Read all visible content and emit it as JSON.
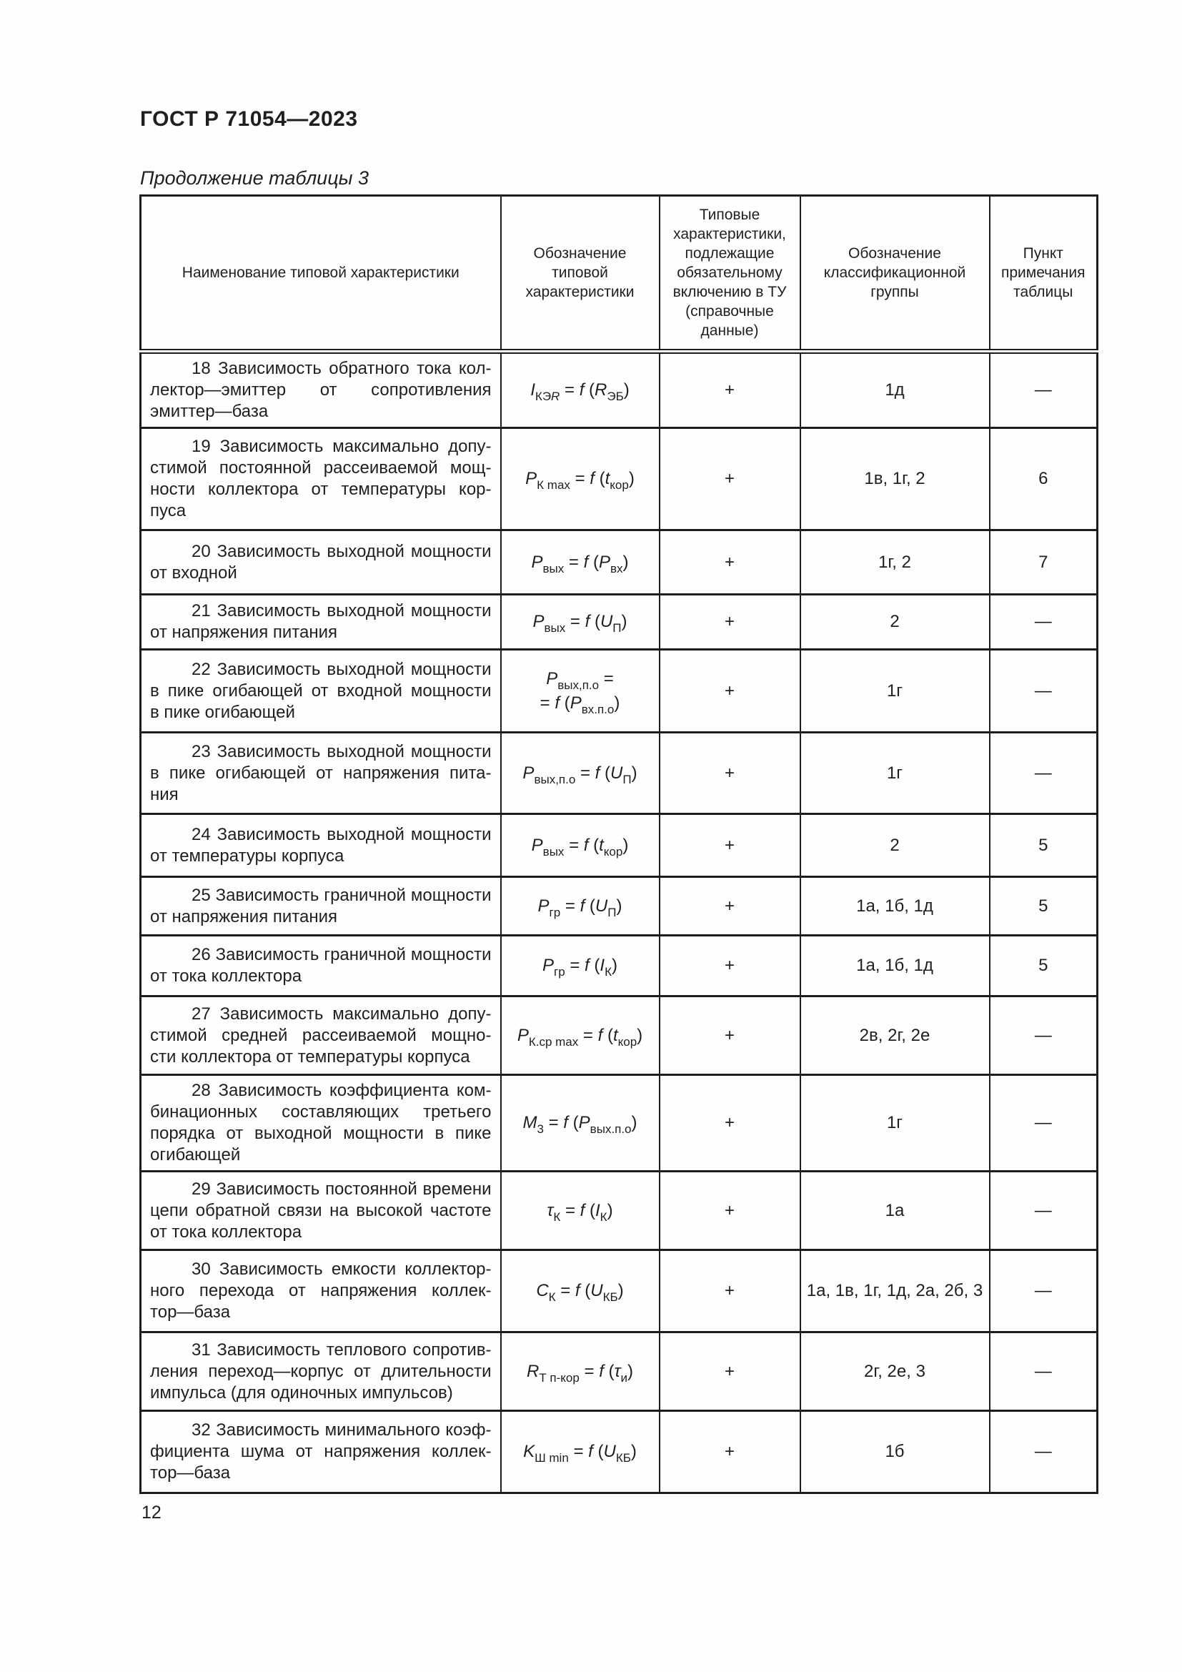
{
  "page": {
    "doc_title": "ГОСТ Р 71054—2023",
    "table_caption": "Продолжение таблицы 3",
    "page_number": "12"
  },
  "table": {
    "headers": [
      "Наименование типовой характеристики",
      "Обозначение типовой характеристики",
      "Типовые характеристики, подлежащие обязательному включению в ТУ (справочные данные)",
      "Обозначение классификационной группы",
      "Пункт примечания таблицы"
    ],
    "rows": [
      {
        "name_lines": [
          "18 Зависимость обратного тока кол-",
          "лектор—эмиттер от сопротивления",
          "эмиттер—база"
        ],
        "formula_lines": [
          [
            {
              "t": "I",
              "i": 1
            },
            {
              "t": "КЭ",
              "s": 1
            },
            {
              "t": "R",
              "s": 1,
              "i": 1
            },
            {
              "t": " = "
            },
            {
              "t": "f",
              "i": 1
            },
            {
              "t": " ("
            },
            {
              "t": "R",
              "i": 1
            },
            {
              "t": "ЭБ",
              "s": 1
            },
            {
              "t": ")"
            }
          ]
        ],
        "typical": "+",
        "group": "1д",
        "note": "—"
      },
      {
        "name_lines": [
          "19 Зависимость максимально допу-",
          "стимой постоянной рассеиваемой мощ-",
          "ности коллектора от температуры кор-",
          "пуса"
        ],
        "formula_lines": [
          [
            {
              "t": "P",
              "i": 1
            },
            {
              "t": "К max",
              "s": 1
            },
            {
              "t": " = "
            },
            {
              "t": "f",
              "i": 1
            },
            {
              "t": " ("
            },
            {
              "t": "t",
              "i": 1
            },
            {
              "t": "кор",
              "s": 1
            },
            {
              "t": ")"
            }
          ]
        ],
        "typical": "+",
        "group": "1в, 1г, 2",
        "note": "6"
      },
      {
        "name_lines": [
          "20 Зависимость выходной мощности",
          "от входной"
        ],
        "formula_lines": [
          [
            {
              "t": "P",
              "i": 1
            },
            {
              "t": "вых",
              "s": 1
            },
            {
              "t": " = "
            },
            {
              "t": "f",
              "i": 1
            },
            {
              "t": " ("
            },
            {
              "t": "P",
              "i": 1
            },
            {
              "t": "вх",
              "s": 1
            },
            {
              "t": ")"
            }
          ]
        ],
        "typical": "+",
        "group": "1г, 2",
        "note": "7"
      },
      {
        "name_lines": [
          "21 Зависимость выходной мощности",
          "от напряжения питания"
        ],
        "formula_lines": [
          [
            {
              "t": "P",
              "i": 1
            },
            {
              "t": "вых",
              "s": 1
            },
            {
              "t": " = "
            },
            {
              "t": "f",
              "i": 1
            },
            {
              "t": " ("
            },
            {
              "t": "U",
              "i": 1
            },
            {
              "t": "П",
              "s": 1
            },
            {
              "t": ")"
            }
          ]
        ],
        "typical": "+",
        "group": "2",
        "note": "—"
      },
      {
        "name_lines": [
          "22 Зависимость выходной мощности",
          "в пике огибающей от входной мощности",
          "в пике огибающей"
        ],
        "formula_lines": [
          [
            {
              "t": "P",
              "i": 1
            },
            {
              "t": "вых,п.о",
              "s": 1
            },
            {
              "t": " ="
            }
          ],
          [
            {
              "t": "= "
            },
            {
              "t": "f",
              "i": 1
            },
            {
              "t": " ("
            },
            {
              "t": "P",
              "i": 1
            },
            {
              "t": "вх.п.о",
              "s": 1
            },
            {
              "t": ")"
            }
          ]
        ],
        "typical": "+",
        "group": "1г",
        "note": "—"
      },
      {
        "name_lines": [
          "23 Зависимость выходной мощности",
          "в пике огибающей от напряжения пита-",
          "ния"
        ],
        "formula_lines": [
          [
            {
              "t": "P",
              "i": 1
            },
            {
              "t": "вых,п.о",
              "s": 1
            },
            {
              "t": " = "
            },
            {
              "t": "f",
              "i": 1
            },
            {
              "t": " ("
            },
            {
              "t": "U",
              "i": 1
            },
            {
              "t": "П",
              "s": 1
            },
            {
              "t": ")"
            }
          ]
        ],
        "typical": "+",
        "group": "1г",
        "note": "—"
      },
      {
        "name_lines": [
          "24 Зависимость выходной мощности",
          "от температуры корпуса"
        ],
        "formula_lines": [
          [
            {
              "t": "P",
              "i": 1
            },
            {
              "t": "вых",
              "s": 1
            },
            {
              "t": " = "
            },
            {
              "t": "f",
              "i": 1
            },
            {
              "t": " ("
            },
            {
              "t": "t",
              "i": 1
            },
            {
              "t": "кор",
              "s": 1
            },
            {
              "t": ")"
            }
          ]
        ],
        "typical": "+",
        "group": "2",
        "note": "5"
      },
      {
        "name_lines": [
          "25 Зависимость граничной мощности",
          "от напряжения питания"
        ],
        "formula_lines": [
          [
            {
              "t": "P",
              "i": 1
            },
            {
              "t": "гр",
              "s": 1
            },
            {
              "t": " = "
            },
            {
              "t": "f",
              "i": 1
            },
            {
              "t": " ("
            },
            {
              "t": "U",
              "i": 1
            },
            {
              "t": "П",
              "s": 1
            },
            {
              "t": ")"
            }
          ]
        ],
        "typical": "+",
        "group": "1а, 1б, 1д",
        "note": "5"
      },
      {
        "name_lines": [
          "26 Зависимость граничной мощности",
          "от тока коллектора"
        ],
        "formula_lines": [
          [
            {
              "t": "P",
              "i": 1
            },
            {
              "t": "гр",
              "s": 1
            },
            {
              "t": " = "
            },
            {
              "t": "f",
              "i": 1
            },
            {
              "t": " ("
            },
            {
              "t": "I",
              "i": 1
            },
            {
              "t": "К",
              "s": 1
            },
            {
              "t": ")"
            }
          ]
        ],
        "typical": "+",
        "group": "1а, 1б, 1д",
        "note": "5"
      },
      {
        "name_lines": [
          "27 Зависимость максимально допу-",
          "стимой средней рассеиваемой мощно-",
          "сти коллектора от температуры корпуса"
        ],
        "formula_lines": [
          [
            {
              "t": "P",
              "i": 1
            },
            {
              "t": "К.ср max",
              "s": 1
            },
            {
              "t": " = "
            },
            {
              "t": "f",
              "i": 1
            },
            {
              "t": " ("
            },
            {
              "t": "t",
              "i": 1
            },
            {
              "t": "кор",
              "s": 1
            },
            {
              "t": ")"
            }
          ]
        ],
        "typical": "+",
        "group": "2в, 2г, 2е",
        "note": "—"
      },
      {
        "name_lines": [
          "28 Зависимость коэффициента ком-",
          "бинационных составляющих третьего",
          "порядка от выходной мощности в пике",
          "огибающей"
        ],
        "formula_lines": [
          [
            {
              "t": "M",
              "i": 1
            },
            {
              "t": "3",
              "s": 1
            },
            {
              "t": " = "
            },
            {
              "t": "f",
              "i": 1
            },
            {
              "t": " ("
            },
            {
              "t": "P",
              "i": 1
            },
            {
              "t": "вых.п.о",
              "s": 1
            },
            {
              "t": ")"
            }
          ]
        ],
        "typical": "+",
        "group": "1г",
        "note": "—"
      },
      {
        "name_lines": [
          "29 Зависимость постоянной времени",
          "цепи обратной связи на высокой частоте",
          "от тока коллектора"
        ],
        "formula_lines": [
          [
            {
              "t": "τ",
              "i": 1
            },
            {
              "t": "К",
              "s": 1
            },
            {
              "t": " = "
            },
            {
              "t": "f",
              "i": 1
            },
            {
              "t": " ("
            },
            {
              "t": "I",
              "i": 1
            },
            {
              "t": "К",
              "s": 1
            },
            {
              "t": ")"
            }
          ]
        ],
        "typical": "+",
        "group": "1а",
        "note": "—"
      },
      {
        "name_lines": [
          "30 Зависимость емкости коллектор-",
          "ного перехода от напряжения коллек-",
          "тор—база"
        ],
        "formula_lines": [
          [
            {
              "t": "C",
              "i": 1
            },
            {
              "t": "К",
              "s": 1
            },
            {
              "t": " = "
            },
            {
              "t": "f",
              "i": 1
            },
            {
              "t": " ("
            },
            {
              "t": "U",
              "i": 1
            },
            {
              "t": "КБ",
              "s": 1
            },
            {
              "t": ")"
            }
          ]
        ],
        "typical": "+",
        "group": "1а, 1в, 1г, 1д, 2а, 2б, 3",
        "note": "—"
      },
      {
        "name_lines": [
          "31 Зависимость теплового сопротив-",
          "ления переход—корпус от длительности",
          "импульса (для одиночных импульсов)"
        ],
        "formula_lines": [
          [
            {
              "t": "R",
              "i": 1
            },
            {
              "t": "Т п-кор",
              "s": 1
            },
            {
              "t": " = "
            },
            {
              "t": "f",
              "i": 1
            },
            {
              "t": " ("
            },
            {
              "t": "τ",
              "i": 1
            },
            {
              "t": "и",
              "s": 1
            },
            {
              "t": ")"
            }
          ]
        ],
        "typical": "+",
        "group": "2г, 2е, 3",
        "note": "—"
      },
      {
        "name_lines": [
          "32 Зависимость минимального коэф-",
          "фициента шума от напряжения коллек-",
          "тор—база"
        ],
        "formula_lines": [
          [
            {
              "t": "K",
              "i": 1
            },
            {
              "t": "Ш min",
              "s": 1
            },
            {
              "t": " = "
            },
            {
              "t": "f",
              "i": 1
            },
            {
              "t": " ("
            },
            {
              "t": "U",
              "i": 1
            },
            {
              "t": "КБ",
              "s": 1
            },
            {
              "t": ")"
            }
          ]
        ],
        "typical": "+",
        "group": "1б",
        "note": "—"
      }
    ]
  }
}
